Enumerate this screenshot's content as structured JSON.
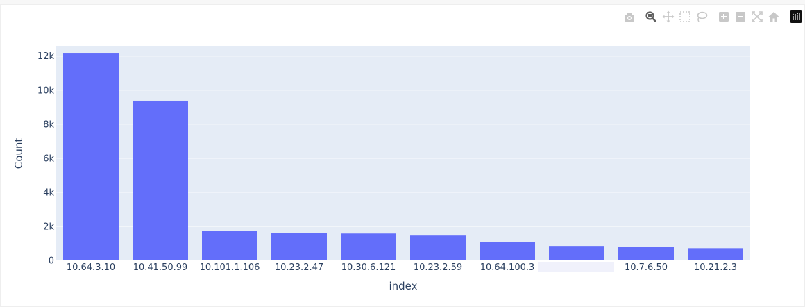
{
  "chart_data": {
    "type": "bar",
    "categories": [
      "10.64.3.10",
      "10.41.50.99",
      "10.101.1.106",
      "10.23.2.47",
      "10.30.6.121",
      "10.23.2.59",
      "10.64.100.3",
      "",
      "10.7.6.50",
      "10.21.2.3"
    ],
    "values": [
      12150,
      9380,
      1720,
      1620,
      1580,
      1460,
      1090,
      850,
      800,
      720
    ],
    "xlabel": "index",
    "ylabel": "Count",
    "ylim": [
      0,
      12600
    ],
    "yticks": [
      0,
      2000,
      4000,
      6000,
      8000,
      10000,
      12000
    ],
    "ytick_labels": [
      "0",
      "2k",
      "4k",
      "6k",
      "8k",
      "10k",
      "12k"
    ],
    "grid": true,
    "colors": {
      "bar": "#636efa",
      "plot_bg": "#e5ecf6",
      "grid": "#ffffff",
      "text": "#2a3f5f"
    }
  },
  "modebar": {
    "buttons": [
      "camera-icon",
      "zoom-icon",
      "pan-icon",
      "box-select-icon",
      "lasso-icon",
      "zoom-in-icon",
      "zoom-out-icon",
      "autoscale-icon",
      "reset-axes-icon",
      "plotly-logo-icon"
    ]
  }
}
